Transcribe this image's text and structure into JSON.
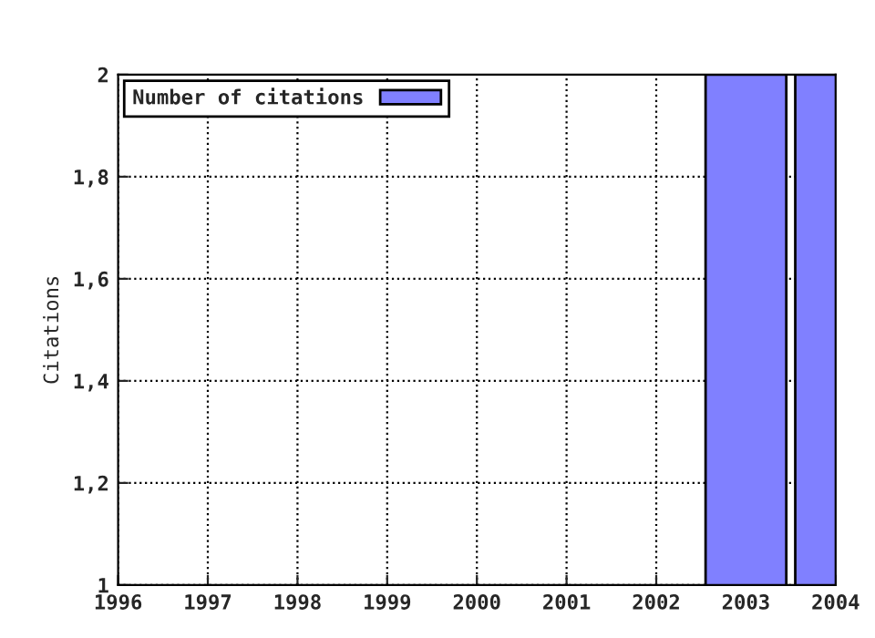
{
  "chart_data": {
    "type": "bar",
    "ylabel": "Citations",
    "x": [
      2003,
      2004
    ],
    "series": [
      {
        "name": "Number of citations",
        "color": "#8080ff",
        "values": [
          2,
          2
        ]
      }
    ],
    "xlim": [
      1996,
      2004
    ],
    "xticks": [
      1996,
      1997,
      1998,
      1999,
      2000,
      2001,
      2002,
      2003,
      2004
    ],
    "ylim": [
      1,
      2
    ],
    "yticks": [
      1,
      {
        "value": 1.2,
        "label": "1,2"
      },
      {
        "value": 1.4,
        "label": "1,4"
      },
      {
        "value": 1.6,
        "label": "1,6"
      },
      {
        "value": 1.8,
        "label": "1,8"
      },
      2
    ],
    "grid": true,
    "legend": "top left"
  }
}
